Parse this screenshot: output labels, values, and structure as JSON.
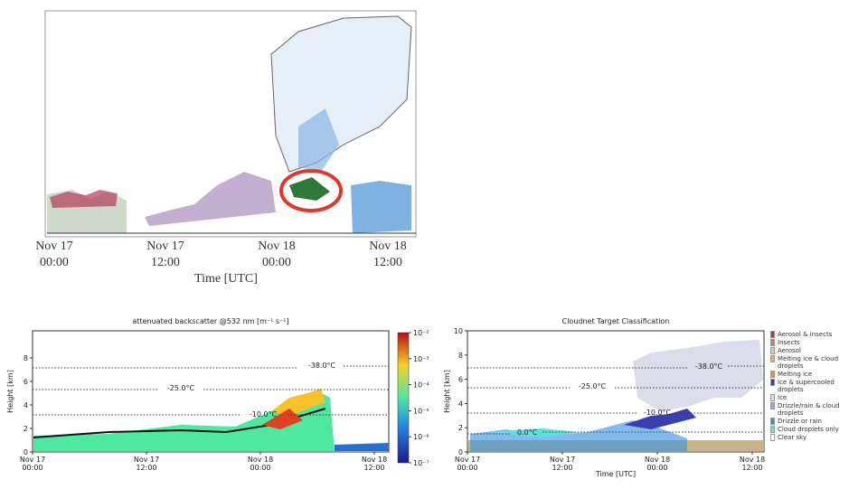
{
  "figures": [
    {
      "xticks": [
        [
          "Nov 17",
          "00:00"
        ],
        [
          "Nov 17",
          "12:00"
        ],
        [
          "Nov 18",
          "00:00"
        ],
        [
          "Nov 18",
          "12:00"
        ]
      ],
      "xlabel": "Time [UTC]"
    },
    {
      "title": "attenuated backscatter @532 nm [m⁻¹ s⁻¹]",
      "ylabel": "Height [km]",
      "ylim": [
        0,
        10.3
      ],
      "yticks": [
        0,
        2,
        4,
        6,
        8
      ],
      "xticks": [
        [
          "Nov 17",
          "00:00"
        ],
        [
          "Nov 17",
          "12:00"
        ],
        [
          "Nov 18",
          "00:00"
        ],
        [
          "Nov 18",
          "12:00"
        ]
      ],
      "isotherms": [
        "-38.0°C",
        "-25.0°C",
        "-10.0°C"
      ],
      "colorbar_lim": [
        1e-07,
        0.01
      ],
      "colorbar_ticks": [
        {
          "value": 0.01,
          "label": "10⁻²"
        },
        {
          "value": 0.001,
          "label": "10⁻³"
        },
        {
          "value": 0.0001,
          "label": "10⁻⁴"
        },
        {
          "value": 1e-05,
          "label": "10⁻⁵"
        },
        {
          "value": 1e-06,
          "label": "10⁻⁶"
        },
        {
          "value": 1e-07,
          "label": "10⁻⁷"
        }
      ]
    },
    {
      "title": "Cloudnet Target Classification",
      "ylabel": "Height [km]",
      "xlabel": "Time [UTC]",
      "ylim": [
        0,
        10
      ],
      "yticks": [
        0,
        2,
        4,
        6,
        8,
        10
      ],
      "xticks": [
        [
          "Nov 17",
          "00:00"
        ],
        [
          "Nov 17",
          "12:00"
        ],
        [
          "Nov 18",
          "00:00"
        ],
        [
          "Nov 18",
          "12:00"
        ]
      ],
      "isotherms": [
        "-38.0°C",
        "-25.0°C",
        "-10.0°C",
        "0.0°C"
      ],
      "legend": [
        {
          "label": "Aerosol & insects",
          "color": "#c0392b"
        },
        {
          "label": "Insects",
          "color": "#e8743b"
        },
        {
          "label": "Aerosol",
          "color": "#d9c9a0"
        },
        {
          "label": "Melting ice & cloud droplets",
          "color": "#f2b04a"
        },
        {
          "label": "Melting ice",
          "color": "#f08a24"
        },
        {
          "label": "Ice & supercooled droplets",
          "color": "#3a3fb0"
        },
        {
          "label": "Ice",
          "color": "#dcdcea"
        },
        {
          "label": "Drizzle/rain & cloud droplets",
          "color": "#9aa2e8"
        },
        {
          "label": "Drizzle or rain",
          "color": "#2f8fe0"
        },
        {
          "label": "Cloud droplets only",
          "color": "#5fe0e0"
        },
        {
          "label": "Clear sky",
          "color": "#ffffff"
        }
      ]
    }
  ]
}
